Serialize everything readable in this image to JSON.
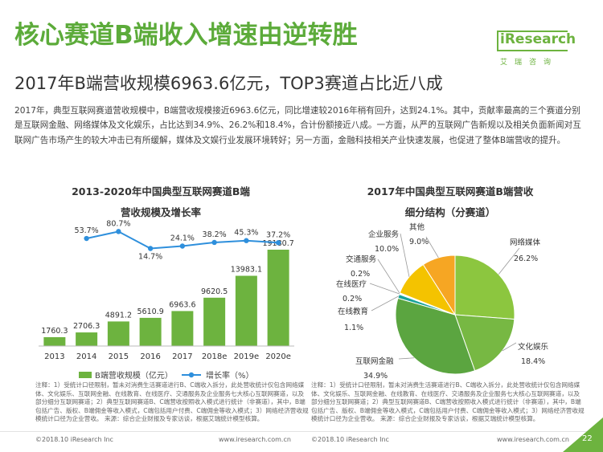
{
  "page": {
    "title": "核心赛道B端收入增速由逆转胜",
    "subtitle": "2017年B端营收规模6963.6亿元，TOP3赛道占比近八成",
    "intro": "2017年，典型互联网赛道营收规模中，B端营收规模接近6963.6亿元，同比增速较2016年稍有回升，达到24.1%。其中，贡献率最高的三个赛道分别是互联网金融、网络媒体及文化娱乐，占比达到34.9%、26.2%和18.4%，合计份额接近八成。一方面，从严的互联网广告新规以及相关负面新闻对互联网广告市场产生的较大冲击已有所缓解，媒体及文娱行业发展环境转好；另一方面，金融科技相关产业快速发展，也促进了整体B端营收的提升。",
    "logo_text": "iResearch",
    "logo_sub": "艾瑞咨询",
    "footer_left1": "©2018.10 iResearch Inc",
    "footer_mid1": "www.iresearch.com.cn",
    "footer_left2": "©2018.10 iResearch Inc",
    "footer_mid2": "www.iresearch.com.cn",
    "page_number": "22",
    "note1": "注释：1）受统计口径限制，暂未对消费生活赛道进行B、C端收入拆分，此处营收统计仅包含网络媒体、文化娱乐、互联网金融、在线教育、在线医疗、交通服务及企业服务七大核心互联网赛道，以及部分细分互联网赛道；2）典型互联网赛道B、C端营收按照收入模式进行统计（非赛道），其中，B端包括广告、版权、B端佣金等收入模式，C端包括用户付费、C端佣金等收入模式；3）网络经济营收规模统计口径为企业营收。\n来源：综合企业财报及专家访谈，根据艾瑞统计模型核算。",
    "note2": "注释：1）受统计口径限制，暂未对消费生活赛道进行B、C端收入拆分，此处营收统计仅包含网络媒体、文化娱乐、互联网金融、在线教育、在线医疗、交通服务及企业服务七大核心互联网赛道，以及部分细分互联网赛道；2）典型互联网赛道B、C端营收按照收入模式进行统计（非赛道），其中，B端包括广告、版权、B端佣金等收入模式，C端包括用户付费、C端佣金等收入模式；3）网络经济营收规模统计口径为企业营收。\n来源：综合企业财报及专家访谈，根据艾瑞统计模型核算。"
  },
  "chart_data": [
    {
      "type": "bar",
      "title_lines": [
        "2013-2020年中国典型互联网赛道B端",
        "营收规模及增长率"
      ],
      "categories": [
        "2013",
        "2014",
        "2015",
        "2016",
        "2017",
        "2018e",
        "2019e",
        "2020e"
      ],
      "series": [
        {
          "name": "B端营收规模（亿元）",
          "type": "bar",
          "color": "#6db33f",
          "values": [
            1760.3,
            2706.3,
            4891.2,
            5610.9,
            6963.6,
            9620.5,
            13983.1,
            19180.7
          ],
          "labels": [
            "1760.3",
            "2706.3",
            "4891.2",
            "5610.9",
            "6963.6",
            "9620.5",
            "13983.1",
            "19180.7"
          ]
        },
        {
          "name": "增长率（%）",
          "type": "line",
          "color": "#2e8fdc",
          "values": [
            null,
            53.7,
            80.7,
            14.7,
            24.1,
            38.2,
            45.3,
            37.2
          ],
          "labels": [
            "",
            "53.7%",
            "80.7%",
            "14.7%",
            "24.1%",
            "38.2%",
            "45.3%",
            "37.2%"
          ]
        }
      ],
      "legend_position": "bottom"
    },
    {
      "type": "pie",
      "title_lines": [
        "2017年中国典型互联网赛道B端营收",
        "细分结构（分赛道）"
      ],
      "slices": [
        {
          "label": "网络媒体",
          "value": 26.2,
          "value_label": "26.2%",
          "color": "#8cc63f"
        },
        {
          "label": "文化娱乐",
          "value": 18.4,
          "value_label": "18.4%",
          "color": "#77b843"
        },
        {
          "label": "互联网金融",
          "value": 34.9,
          "value_label": "34.9%",
          "color": "#5ba540"
        },
        {
          "label": "在线教育",
          "value": 1.1,
          "value_label": "1.1%",
          "color": "#1aa39a"
        },
        {
          "label": "在线医疗",
          "value": 0.2,
          "value_label": "0.2%",
          "color": "#2e8fdc"
        },
        {
          "label": "交通服务",
          "value": 0.2,
          "value_label": "0.2%",
          "color": "#4fb4e8"
        },
        {
          "label": "企业服务",
          "value": 10.0,
          "value_label": "10.0%",
          "color": "#f4c300"
        },
        {
          "label": "其他",
          "value": 9.0,
          "value_label": "9.0%",
          "color": "#f6a623"
        }
      ]
    }
  ]
}
